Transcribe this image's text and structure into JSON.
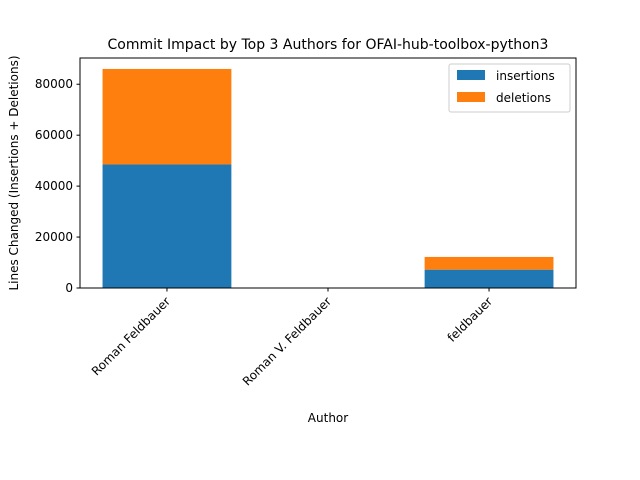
{
  "chart_data": {
    "type": "bar",
    "stacked": true,
    "title": "Commit Impact by Top 3 Authors for OFAI-hub-toolbox-python3",
    "xlabel": "Author",
    "ylabel": "Lines Changed (Insertions + Deletions)",
    "categories": [
      "Roman Feldbauer",
      "Roman V. Feldbauer",
      "feldbauer"
    ],
    "series": [
      {
        "name": "insertions",
        "values": [
          48500,
          0,
          7200
        ],
        "color": "#1f77b4"
      },
      {
        "name": "deletions",
        "values": [
          37500,
          0,
          5000
        ],
        "color": "#ff7f0e"
      }
    ],
    "ylim": [
      0,
      90300
    ],
    "yticks": [
      0,
      20000,
      40000,
      60000,
      80000
    ],
    "ytick_labels": [
      "0",
      "20000",
      "40000",
      "60000",
      "80000"
    ],
    "grid": false,
    "legend_position": "top-right"
  }
}
